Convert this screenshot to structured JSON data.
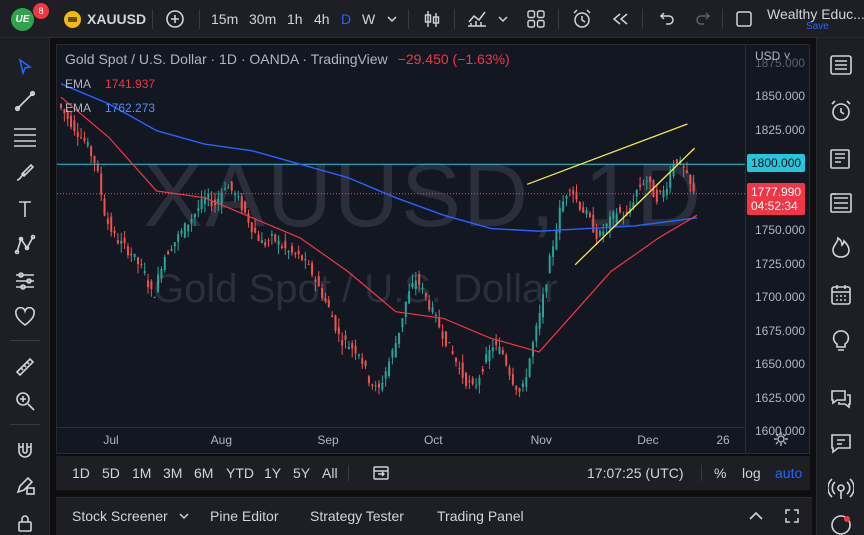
{
  "topbar": {
    "notifications": "8",
    "symbol": "XAUUSD",
    "intervals": [
      "15m",
      "30m",
      "1h",
      "4h",
      "D",
      "W"
    ],
    "active_interval": "D",
    "workspace_name": "Wealthy Educ...",
    "save_label": "Save"
  },
  "legend": {
    "title": "Gold Spot / U.S. Dollar · 1D · OANDA · TradingView",
    "change": "−29.450 (−1.63%)",
    "ema1_label": "EMA",
    "ema1_value": "1741.937",
    "ema2_label": "EMA",
    "ema2_value": "1762.273"
  },
  "watermark": {
    "symbol": "XAUUSD, 1D",
    "name": "Gold Spot / U.S. Dollar"
  },
  "price_axis": {
    "currency": "USD ˅",
    "labels": [
      "1875.000",
      "1850.000",
      "1825.000",
      "1800.000",
      "1775.000",
      "1750.000",
      "1725.000",
      "1700.000",
      "1675.000",
      "1650.000",
      "1625.000",
      "1600.000"
    ],
    "horizontal_line_price": "1800.000",
    "current_price": "1777.990",
    "countdown": "04:52:34"
  },
  "time_axis": {
    "labels": [
      "Jul",
      "Aug",
      "Sep",
      "Oct",
      "Nov",
      "Dec",
      "26"
    ]
  },
  "range_bar": {
    "ranges": [
      "1D",
      "5D",
      "1M",
      "3M",
      "6M",
      "YTD",
      "1Y",
      "5Y",
      "All"
    ],
    "clock": "17:07:25 (UTC)",
    "percent": "%",
    "log": "log",
    "auto": "auto"
  },
  "bottom_panel": {
    "tabs": [
      "Stock Screener",
      "Pine Editor",
      "Strategy Tester",
      "Trading Panel"
    ]
  },
  "colors": {
    "up": "#26a69a",
    "down": "#ef5350",
    "ema_fast": "#f23645",
    "ema_slow": "#2962ff",
    "hline": "#26c6da",
    "wedge": "#f7e94a",
    "accent": "#2962ff"
  },
  "chart_data": {
    "type": "candlestick",
    "title": "Gold Spot / U.S. Dollar · 1D · OANDA",
    "ylim": [
      1595,
      1880
    ],
    "x_ticks": [
      "Jul",
      "Aug",
      "Sep",
      "Oct",
      "Nov",
      "Dec",
      "26"
    ],
    "horizontal_line": 1800,
    "ema_fast_name": "EMA 1741.937",
    "ema_slow_name": "EMA 1762.273",
    "close_path": [
      [
        0,
        1845
      ],
      [
        6,
        1830
      ],
      [
        12,
        1815
      ],
      [
        16,
        1800
      ],
      [
        20,
        1760
      ],
      [
        24,
        1745
      ],
      [
        30,
        1735
      ],
      [
        36,
        1720
      ],
      [
        40,
        1700
      ],
      [
        44,
        1730
      ],
      [
        50,
        1745
      ],
      [
        56,
        1760
      ],
      [
        62,
        1775
      ],
      [
        66,
        1770
      ],
      [
        70,
        1785
      ],
      [
        74,
        1778
      ],
      [
        78,
        1765
      ],
      [
        82,
        1750
      ],
      [
        86,
        1740
      ],
      [
        90,
        1745
      ],
      [
        96,
        1735
      ],
      [
        102,
        1730
      ],
      [
        106,
        1720
      ],
      [
        110,
        1705
      ],
      [
        114,
        1690
      ],
      [
        118,
        1670
      ],
      [
        122,
        1665
      ],
      [
        126,
        1660
      ],
      [
        130,
        1640
      ],
      [
        134,
        1630
      ],
      [
        138,
        1650
      ],
      [
        142,
        1670
      ],
      [
        146,
        1700
      ],
      [
        150,
        1715
      ],
      [
        154,
        1700
      ],
      [
        158,
        1685
      ],
      [
        162,
        1670
      ],
      [
        166,
        1655
      ],
      [
        170,
        1640
      ],
      [
        174,
        1632
      ],
      [
        178,
        1650
      ],
      [
        182,
        1665
      ],
      [
        186,
        1660
      ],
      [
        190,
        1640
      ],
      [
        194,
        1628
      ],
      [
        198,
        1660
      ],
      [
        202,
        1690
      ],
      [
        206,
        1730
      ],
      [
        210,
        1765
      ],
      [
        214,
        1785
      ],
      [
        218,
        1770
      ],
      [
        222,
        1760
      ],
      [
        226,
        1745
      ],
      [
        230,
        1755
      ],
      [
        234,
        1765
      ],
      [
        238,
        1760
      ],
      [
        242,
        1780
      ],
      [
        246,
        1790
      ],
      [
        250,
        1775
      ],
      [
        254,
        1780
      ],
      [
        258,
        1805
      ],
      [
        262,
        1795
      ],
      [
        266,
        1778
      ]
    ],
    "ema_fast_path": [
      [
        0,
        1850
      ],
      [
        20,
        1820
      ],
      [
        40,
        1780
      ],
      [
        60,
        1775
      ],
      [
        80,
        1760
      ],
      [
        100,
        1745
      ],
      [
        120,
        1720
      ],
      [
        140,
        1690
      ],
      [
        160,
        1685
      ],
      [
        180,
        1670
      ],
      [
        200,
        1660
      ],
      [
        215,
        1690
      ],
      [
        230,
        1720
      ],
      [
        250,
        1745
      ],
      [
        266,
        1762
      ]
    ],
    "ema_slow_path": [
      [
        0,
        1860
      ],
      [
        20,
        1845
      ],
      [
        40,
        1825
      ],
      [
        60,
        1815
      ],
      [
        80,
        1810
      ],
      [
        100,
        1800
      ],
      [
        120,
        1790
      ],
      [
        140,
        1775
      ],
      [
        160,
        1762
      ],
      [
        180,
        1752
      ],
      [
        200,
        1750
      ],
      [
        220,
        1752
      ],
      [
        240,
        1754
      ],
      [
        266,
        1760
      ]
    ],
    "wedge_upper": [
      [
        200,
        1792
      ],
      [
        260,
        1827
      ]
    ],
    "wedge_upper2": [
      [
        195,
        1785
      ],
      [
        262,
        1830
      ]
    ],
    "wedge_lower": [
      [
        215,
        1725
      ],
      [
        265,
        1812
      ]
    ]
  }
}
